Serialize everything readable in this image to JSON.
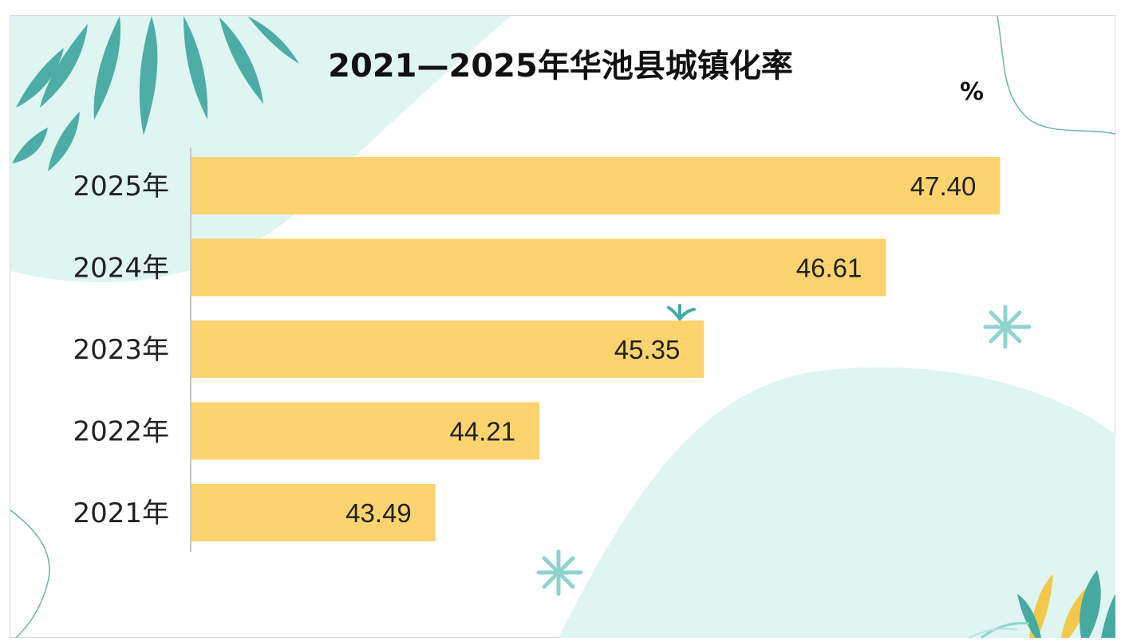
{
  "chart_data": {
    "type": "bar",
    "orientation": "horizontal",
    "title": "2021—2025年华池县城镇化率",
    "unit": "%",
    "categories": [
      "2025年",
      "2024年",
      "2023年",
      "2022年",
      "2021年"
    ],
    "values": [
      47.4,
      46.61,
      45.35,
      44.21,
      43.49
    ],
    "value_labels": [
      "47.40",
      "46.61",
      "45.35",
      "44.21",
      "43.49"
    ],
    "xlim": [
      41.8,
      48.1
    ],
    "grid": false,
    "legend": "none",
    "bar_color": "#fcd36e"
  },
  "colors": {
    "mint": "#dff5f2",
    "teal": "#46aaa2",
    "axis": "#c8c8c8"
  }
}
